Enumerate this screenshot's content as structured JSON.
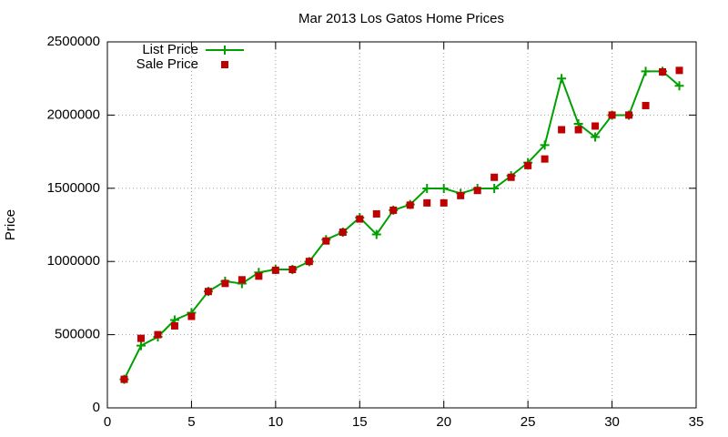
{
  "chart_data": {
    "type": "line",
    "title": "Mar 2013 Los Gatos Home Prices",
    "y_label": "Price",
    "x": [
      1,
      2,
      3,
      4,
      5,
      6,
      7,
      8,
      9,
      10,
      11,
      12,
      13,
      14,
      15,
      16,
      17,
      18,
      19,
      20,
      21,
      22,
      23,
      24,
      25,
      26,
      27,
      28,
      29,
      30,
      31,
      32,
      33,
      34
    ],
    "series": [
      {
        "name": "List Price",
        "color": "#00a000",
        "line": true,
        "marker": "plus",
        "values": [
          195000,
          425000,
          485000,
          600000,
          650000,
          795000,
          865000,
          849000,
          925000,
          945000,
          945000,
          999000,
          1149000,
          1200000,
          1300000,
          1185000,
          1350000,
          1389000,
          1499000,
          1499000,
          1465000,
          1499000,
          1499000,
          1585000,
          1675000,
          1795000,
          2250000,
          1940000,
          1850000,
          1999000,
          1999000,
          2299000,
          2299000,
          2200000
        ]
      },
      {
        "name": "Sale Price",
        "color": "#c00000",
        "line": false,
        "marker": "square",
        "values": [
          195000,
          475000,
          500000,
          560000,
          625000,
          795000,
          850000,
          875000,
          900000,
          940000,
          945000,
          1000000,
          1140000,
          1200000,
          1290000,
          1325000,
          1350000,
          1385000,
          1400000,
          1400000,
          1450000,
          1485000,
          1575000,
          1575000,
          1655000,
          1700000,
          1900000,
          1900000,
          1925000,
          2000000,
          2000000,
          2065000,
          2295000,
          2305000
        ]
      }
    ],
    "xlim": [
      0,
      35
    ],
    "xticks": [
      0,
      5,
      10,
      15,
      20,
      25,
      30,
      35
    ],
    "ylim": [
      0,
      2500000
    ],
    "yticks": [
      0,
      500000,
      1000000,
      1500000,
      2000000,
      2500000
    ],
    "grid": true,
    "legend": "top-left"
  }
}
